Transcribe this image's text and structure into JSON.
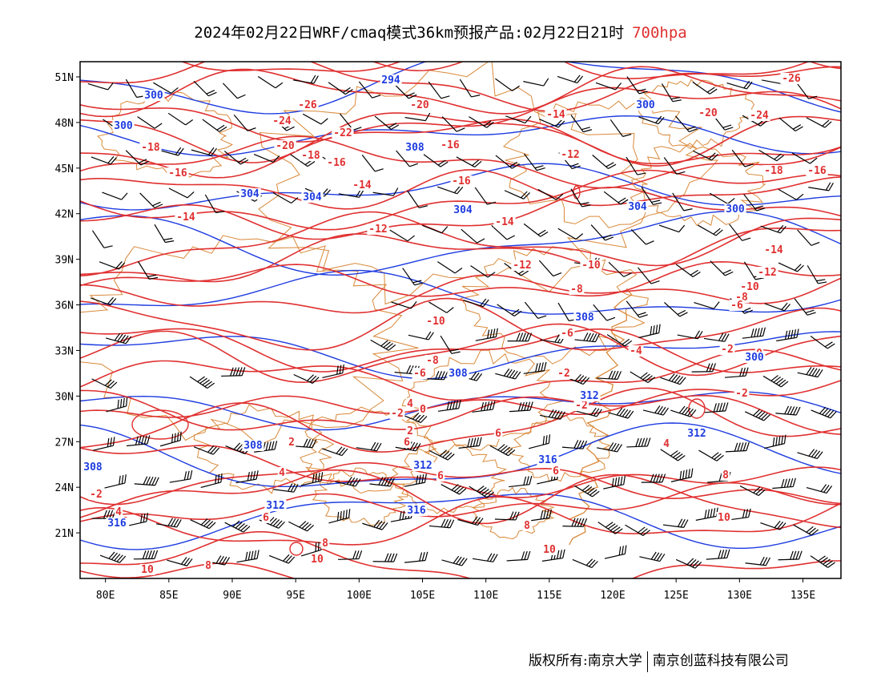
{
  "header": {
    "title": "2024年02月22日WRF/cmaq模式36km预报产品:02月22日21时",
    "level": "700hpa"
  },
  "map": {
    "projection": "lat-lon",
    "lon_range": [
      78,
      138
    ],
    "lat_range": [
      18,
      52
    ],
    "lat_ticks": [
      "51N",
      "48N",
      "45N",
      "42N",
      "39N",
      "36N",
      "33N",
      "30N",
      "27N",
      "24N",
      "21N"
    ],
    "lon_ticks": [
      "80E",
      "85E",
      "90E",
      "95E",
      "100E",
      "105E",
      "110E",
      "115E",
      "120E",
      "125E",
      "130E",
      "135E"
    ],
    "colors": {
      "temperature_contour": "#e03030",
      "height_contour": "#1e3ce0",
      "boundary": "#d9893a",
      "wind_barb": "#000000"
    },
    "temperature_labels": [
      "-26",
      "-24",
      "-22",
      "-20",
      "-18",
      "-16",
      "-14",
      "-12",
      "-10",
      "-8",
      "-6",
      "-4",
      "-2",
      "0",
      "2",
      "4",
      "6",
      "8",
      "10"
    ],
    "height_labels": [
      "294",
      "300",
      "304",
      "308",
      "312",
      "316"
    ]
  },
  "footer": {
    "copyright": "版权所有:南京大学",
    "company": "南京创蓝科技有限公司"
  }
}
